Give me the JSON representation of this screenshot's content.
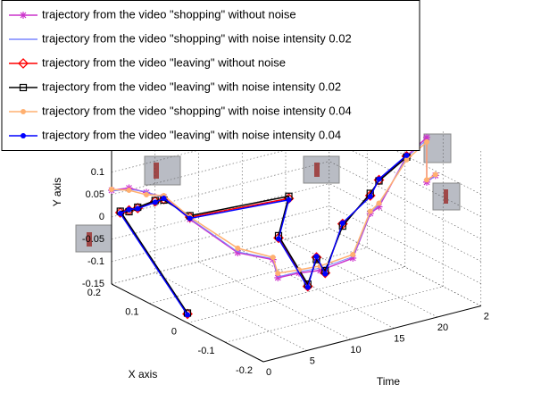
{
  "chart_data": {
    "type": "line3d",
    "xlabel": "Time",
    "ylabel": "X axis",
    "zlabel": "Y axis",
    "tlim": [
      0,
      25
    ],
    "tticks": [
      0,
      5,
      10,
      15,
      20,
      {
        "value": 25,
        "label": "2"
      }
    ],
    "xlim": [
      -0.2,
      0.2
    ],
    "xticks": [
      0.2,
      0.1,
      0,
      -0.1,
      -0.2
    ],
    "ylim": [
      -0.15,
      0.2
    ],
    "yticks": [
      0.1,
      0.05,
      0,
      -0.05,
      -0.1,
      -0.15
    ],
    "grid": true,
    "legend": "upper left",
    "series": [
      {
        "name": "trajectory from the video \"shopping\" without noise",
        "color": "#cc33cc",
        "marker": "asterisk",
        "time": [
          0,
          2,
          4,
          6,
          9,
          11,
          12,
          13,
          15,
          17,
          19,
          21,
          22,
          23,
          24,
          24,
          25
        ],
        "x": [
          0.2,
          0.2,
          0.2,
          0.2,
          0.2,
          0.12,
          0.05,
          0.06,
          0.05,
          0.04,
          0,
          0,
          0,
          -0.05,
          -0.08,
          -0.08,
          -0.08
        ],
        "y": [
          0.06,
          0.055,
          0.035,
          0.015,
          -0.05,
          -0.1,
          -0.09,
          -0.14,
          -0.135,
          -0.135,
          -0.1,
          -0.01,
          0,
          0.13,
          0.18,
          0.08,
          0.09
        ]
      },
      {
        "name": "trajectory from the video \"shopping\" with noise intensity 0.02",
        "color": "#7a86ff",
        "marker": "none",
        "time": [
          0,
          2,
          4,
          6,
          9,
          11,
          12,
          13,
          15,
          17,
          19,
          21,
          22,
          23,
          24,
          24,
          25
        ],
        "x": [
          0.2,
          0.2,
          0.2,
          0.2,
          0.2,
          0.12,
          0.05,
          0.06,
          0.05,
          0.04,
          0,
          0,
          0,
          -0.05,
          -0.08,
          -0.08,
          -0.08
        ],
        "y": [
          0.058,
          0.052,
          0.037,
          0.012,
          -0.048,
          -0.098,
          -0.088,
          -0.138,
          -0.132,
          -0.13,
          -0.097,
          -0.008,
          0.004,
          0.127,
          0.175,
          0.082,
          0.088
        ]
      },
      {
        "name": "trajectory from the video \"leaving\" without noise",
        "color": "#ff0000",
        "marker": "diamond",
        "time": [
          0,
          1,
          2,
          3,
          5,
          6,
          9,
          16,
          17,
          16,
          17,
          18,
          20,
          21,
          22,
          23
        ],
        "x": [
          0,
          0.2,
          0.2,
          0.2,
          0.2,
          0.2,
          0.2,
          0.1,
          0.15,
          0.05,
          0.05,
          0.05,
          0.05,
          0,
          0,
          -0.05
        ],
        "y": [
          -0.13,
          0.005,
          0.005,
          0.005,
          0.01,
          0.01,
          -0.045,
          0.005,
          -0.11,
          -0.17,
          -0.11,
          -0.15,
          -0.05,
          0.03,
          0.06,
          0.13
        ]
      },
      {
        "name": "trajectory from the video \"leaving\" with noise intensity 0.02",
        "color": "#000000",
        "marker": "square",
        "time": [
          0,
          1,
          2,
          3,
          5,
          6,
          9,
          16,
          17,
          16,
          17,
          18,
          20,
          21,
          22,
          23
        ],
        "x": [
          0,
          0.2,
          0.2,
          0.2,
          0.2,
          0.2,
          0.2,
          0.1,
          0.15,
          0.05,
          0.05,
          0.05,
          0.05,
          0,
          0,
          -0.05
        ],
        "y": [
          -0.128,
          0.008,
          0.002,
          0.007,
          0.012,
          0.008,
          -0.042,
          0.01,
          -0.105,
          -0.165,
          -0.115,
          -0.145,
          -0.055,
          0.035,
          0.058,
          0.128
        ]
      },
      {
        "name": "trajectory from the video \"shopping\" with noise intensity 0.04",
        "color": "#ffb070",
        "marker": "circle",
        "time": [
          0,
          2,
          4,
          6,
          9,
          11,
          12,
          13,
          15,
          17,
          19,
          21,
          22,
          23,
          24,
          24,
          25
        ],
        "x": [
          0.2,
          0.2,
          0.2,
          0.2,
          0.2,
          0.12,
          0.05,
          0.06,
          0.05,
          0.04,
          0,
          0,
          0,
          -0.05,
          -0.08,
          -0.08,
          -0.08
        ],
        "y": [
          0.062,
          0.05,
          0.03,
          0.018,
          -0.045,
          -0.09,
          -0.085,
          -0.13,
          -0.128,
          -0.125,
          -0.092,
          -0.005,
          0.008,
          0.122,
          0.17,
          0.085,
          0.092
        ]
      },
      {
        "name": "trajectory from the video \"leaving\" with noise intensity 0.04",
        "color": "#0000ff",
        "marker": "dot",
        "time": [
          0,
          1,
          2,
          3,
          5,
          6,
          9,
          16,
          17,
          16,
          17,
          18,
          20,
          21,
          22,
          23
        ],
        "x": [
          0,
          0.2,
          0.2,
          0.2,
          0.2,
          0.2,
          0.2,
          0.1,
          0.15,
          0.05,
          0.05,
          0.05,
          0.05,
          0,
          0,
          -0.05
        ],
        "y": [
          -0.132,
          0.003,
          0.007,
          0.004,
          0.008,
          0.012,
          -0.048,
          0.002,
          -0.112,
          -0.172,
          -0.108,
          -0.152,
          -0.048,
          0.028,
          0.062,
          0.132
        ]
      }
    ]
  }
}
